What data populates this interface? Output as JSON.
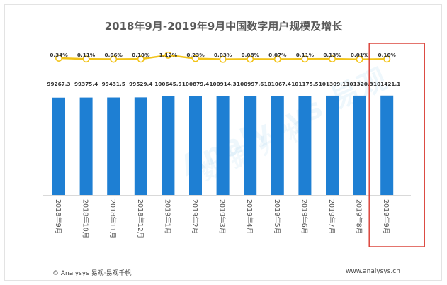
{
  "chart_data": {
    "type": "bar",
    "title": "2018年9月-2019年9月中国数字用户规模及增长",
    "categories": [
      "2018年9月",
      "2018年10月",
      "2018年11月",
      "2018年12月",
      "2019年1月",
      "2019年2月",
      "2019年3月",
      "2019年4月",
      "2019年5月",
      "2019年6月",
      "2019年7月",
      "2019年8月",
      "2019年9月"
    ],
    "value_labels": [
      "99267.3",
      "99375.4",
      "99431.5",
      "99529.4",
      "100645.9",
      "100879.4",
      "100914.3",
      "100997.6",
      "101067.4",
      "101175.5",
      "101309.1",
      "101320.3",
      "101421.1"
    ],
    "values": [
      99267.3,
      99375.4,
      99431.5,
      99529.4,
      100645.9,
      100879.4,
      100914.3,
      100997.6,
      101067.4,
      101175.5,
      101309.1,
      101320.3,
      101421.1
    ],
    "growth_labels": [
      "0.34%",
      "0.11%",
      "0.06%",
      "0.10%",
      "1.12%",
      "0.23%",
      "0.03%",
      "0.08%",
      "0.07%",
      "0.11%",
      "0.13%",
      "0.01%",
      "0.10%"
    ],
    "growth": [
      0.34,
      0.11,
      0.06,
      0.1,
      1.12,
      0.23,
      0.03,
      0.08,
      0.07,
      0.11,
      0.13,
      0.01,
      0.1
    ],
    "highlight_index": 12,
    "ylim_bars": [
      0,
      115000
    ],
    "ylim_line": [
      -3.0,
      3.5
    ],
    "colors": {
      "bar": "#1e7fd3",
      "line": "#f2c318",
      "marker_fill": "#ffffff",
      "highlight_box": "#d9382f",
      "text": "#333333"
    }
  },
  "watermark": {
    "line1": "Analysys 易观",
    "line2": "数据分析"
  },
  "footer": {
    "left": "© Analysys 易观·易观千帆",
    "right": "www.analysys.cn"
  }
}
